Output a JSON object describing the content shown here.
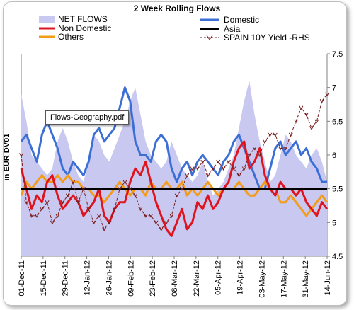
{
  "chart_data": {
    "type": "line",
    "title": "2 Week Rolling Flows",
    "ylabel": "in EUR DV01",
    "y2_ticks": [
      "4.5",
      "5",
      "5.5",
      "6",
      "6.5",
      "7",
      "7.5"
    ],
    "y2lim": [
      4.5,
      7.5
    ],
    "x_ticks": [
      "01-Dec-11",
      "15-Dec-11",
      "29-Dec-11",
      "12-Jan-12",
      "26-Jan-12",
      "09-Feb-12",
      "23-Feb-12",
      "08-Mar-12",
      "22-Mar-12",
      "05-Apr-12",
      "19-Apr-12",
      "03-May-12",
      "17-May-12",
      "31-May-12",
      "14-Jun-12"
    ],
    "legend_position": "top",
    "annotation": "Flows-Geography.pdf",
    "series": [
      {
        "name": "NET FLOWS",
        "style": "area",
        "color": "#c8c8f0",
        "y": [
          6.9,
          6.5,
          6.0,
          5.9,
          5.8,
          5.7,
          5.8,
          6.2,
          6.4,
          6.2,
          5.9,
          5.7,
          5.6,
          5.9,
          6.3,
          6.2,
          6.0,
          5.9,
          6.1,
          6.3,
          6.5,
          6.8,
          7.0,
          6.6,
          6.2,
          6.0,
          5.9,
          5.8,
          5.9,
          6.2,
          6.0,
          5.8,
          5.7,
          5.6,
          5.7,
          5.9,
          5.6,
          5.4,
          5.5,
          5.6,
          5.8,
          6.0,
          6.4,
          6.8,
          7.1,
          6.6,
          6.2,
          5.9,
          5.6,
          5.7,
          6.0,
          6.3,
          6.2,
          6.0,
          5.9,
          5.8,
          6.0,
          6.1,
          5.9,
          5.6
        ]
      },
      {
        "name": "Domestic",
        "style": "line",
        "color": "#3b6fd6",
        "y": [
          6.2,
          6.3,
          6.1,
          5.9,
          6.3,
          6.5,
          6.3,
          6.1,
          5.8,
          5.7,
          5.9,
          5.8,
          5.7,
          5.9,
          6.3,
          6.4,
          6.2,
          6.3,
          6.4,
          6.7,
          7.0,
          6.8,
          6.2,
          6.0,
          6.0,
          5.9,
          6.2,
          6.3,
          6.2,
          5.8,
          5.6,
          5.8,
          5.9,
          5.7,
          5.9,
          6.0,
          5.9,
          5.8,
          5.7,
          5.9,
          6.0,
          6.2,
          6.3,
          6.1,
          5.9,
          5.7,
          5.5,
          5.5,
          5.8,
          6.1,
          6.2,
          6.0,
          6.1,
          6.2,
          6.0,
          6.1,
          5.9,
          5.8,
          5.6,
          5.6
        ]
      },
      {
        "name": "Asia",
        "style": "line",
        "color": "#000000",
        "y": [
          5.5,
          5.5,
          5.5,
          5.5,
          5.5,
          5.5,
          5.5,
          5.5,
          5.5,
          5.5,
          5.5,
          5.5,
          5.5,
          5.5,
          5.5,
          5.5,
          5.5,
          5.5,
          5.5,
          5.5,
          5.5,
          5.5,
          5.5,
          5.5,
          5.5,
          5.5,
          5.5,
          5.5,
          5.5,
          5.5,
          5.5,
          5.5,
          5.5,
          5.5,
          5.5,
          5.5,
          5.5,
          5.5,
          5.5,
          5.5,
          5.5,
          5.5,
          5.5,
          5.5,
          5.5,
          5.5,
          5.5,
          5.5,
          5.5,
          5.5,
          5.5,
          5.5,
          5.5,
          5.5,
          5.5,
          5.5,
          5.5,
          5.5,
          5.5,
          5.5
        ]
      },
      {
        "name": "Non Domestic",
        "style": "line",
        "color": "#e0141e",
        "y": [
          5.8,
          5.5,
          5.2,
          5.4,
          5.3,
          5.6,
          5.7,
          5.4,
          5.2,
          5.3,
          5.4,
          5.3,
          5.1,
          5.2,
          5.3,
          5.5,
          5.1,
          5.0,
          5.2,
          5.3,
          5.3,
          5.6,
          5.8,
          5.7,
          5.9,
          5.6,
          5.3,
          5.1,
          4.9,
          4.8,
          5.0,
          5.2,
          4.9,
          5.0,
          5.3,
          5.2,
          5.4,
          5.2,
          5.3,
          5.5,
          5.6,
          5.9,
          6.1,
          6.2,
          5.8,
          5.9,
          6.1,
          5.7,
          5.5,
          5.4,
          5.6,
          5.5,
          5.5,
          5.4,
          5.5,
          5.3,
          5.2,
          5.1,
          5.3,
          5.2
        ]
      },
      {
        "name": "Others",
        "style": "line",
        "color": "#f39c1a",
        "y": [
          5.4,
          5.6,
          5.5,
          5.6,
          5.7,
          5.6,
          5.6,
          5.7,
          5.6,
          5.7,
          5.6,
          5.6,
          5.5,
          5.5,
          5.4,
          5.4,
          5.3,
          5.4,
          5.5,
          5.6,
          5.5,
          5.4,
          5.5,
          5.5,
          5.4,
          5.6,
          5.5,
          5.5,
          5.6,
          5.5,
          5.5,
          5.6,
          5.4,
          5.5,
          5.4,
          5.5,
          5.6,
          5.5,
          5.4,
          5.5,
          5.5,
          5.5,
          5.6,
          5.5,
          5.4,
          5.4,
          5.5,
          5.6,
          5.5,
          5.5,
          5.3,
          5.3,
          5.4,
          5.3,
          5.2,
          5.1,
          5.2,
          5.3,
          5.4,
          5.3
        ]
      },
      {
        "name": "SPAIN 10Y Yield -RHS",
        "style": "dashed-marker",
        "color": "#7a1e1e",
        "y": [
          6.0,
          5.3,
          5.1,
          5.1,
          5.2,
          5.3,
          5.0,
          5.1,
          5.3,
          5.4,
          5.6,
          5.3,
          5.5,
          5.2,
          5.0,
          5.1,
          4.9,
          5.0,
          5.2,
          5.5,
          5.6,
          5.5,
          5.4,
          5.2,
          5.1,
          5.1,
          5.0,
          4.9,
          5.0,
          5.1,
          5.4,
          5.5,
          5.7,
          5.8,
          5.8,
          5.9,
          5.7,
          5.8,
          5.9,
          5.8,
          5.9,
          5.8,
          5.7,
          5.8,
          6.0,
          6.1,
          6.0,
          6.2,
          6.3,
          6.3,
          6.1,
          6.1,
          6.3,
          6.5,
          6.7,
          6.6,
          6.4,
          6.5,
          6.8,
          6.9
        ]
      }
    ]
  }
}
